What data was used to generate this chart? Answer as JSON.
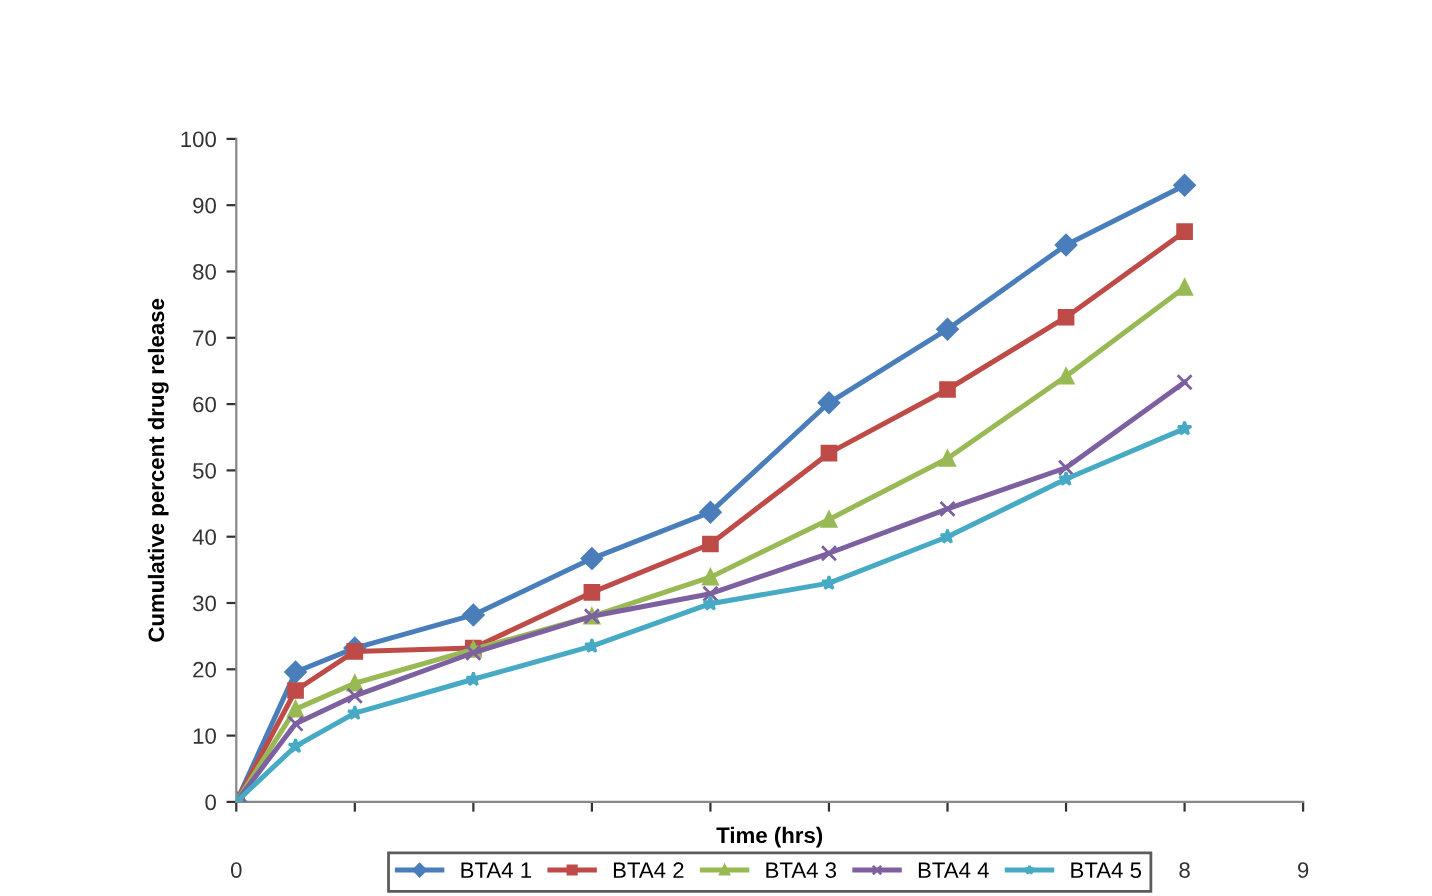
{
  "chart_data": {
    "type": "line",
    "xlabel": "Time (hrs)",
    "ylabel": "Cumulative percent drug release",
    "x": [
      0,
      0.5,
      1,
      2,
      3,
      4,
      5,
      6,
      7,
      8
    ],
    "series": [
      {
        "name": "BTA4 1",
        "color": "#4a7ebb",
        "marker": "diamond",
        "values": [
          0,
          19.6,
          23.2,
          28.2,
          36.7,
          43.7,
          60.2,
          71.3,
          84,
          93
        ]
      },
      {
        "name": "BTA4 2",
        "color": "#be4b48",
        "marker": "square",
        "values": [
          0,
          16.8,
          22.7,
          23.2,
          31.6,
          38.9,
          52.6,
          62.2,
          73.1,
          86
        ]
      },
      {
        "name": "BTA4 3",
        "color": "#98b954",
        "marker": "triangle",
        "values": [
          0,
          14,
          17.9,
          23,
          28,
          33.9,
          42.6,
          51.8,
          64.2,
          77.6
        ]
      },
      {
        "name": "BTA4 4",
        "color": "#7d60a0",
        "marker": "cross",
        "values": [
          0,
          11.8,
          16,
          22.5,
          28,
          31.4,
          37.5,
          44.2,
          50.4,
          63.3
        ]
      },
      {
        "name": "BTA4 5",
        "color": "#46aac5",
        "marker": "star",
        "values": [
          0,
          8.4,
          13.4,
          18.5,
          23.5,
          29.9,
          33,
          40,
          48.7,
          56.3
        ]
      }
    ],
    "xlim": [
      0,
      9
    ],
    "ylim": [
      0,
      100
    ],
    "xticks": [
      0,
      {
        "value": 1,
        "label": null
      },
      {
        "value": 2,
        "label": null
      },
      {
        "value": 3,
        "label": null
      },
      {
        "value": 4,
        "label": null
      },
      {
        "value": 5,
        "label": null
      },
      {
        "value": 6,
        "label": null
      },
      {
        "value": 7,
        "label": null
      },
      8,
      9
    ],
    "yticks": [
      0,
      10,
      20,
      30,
      40,
      50,
      60,
      70,
      80,
      90,
      100
    ],
    "grid": false,
    "legend": "bottom"
  }
}
